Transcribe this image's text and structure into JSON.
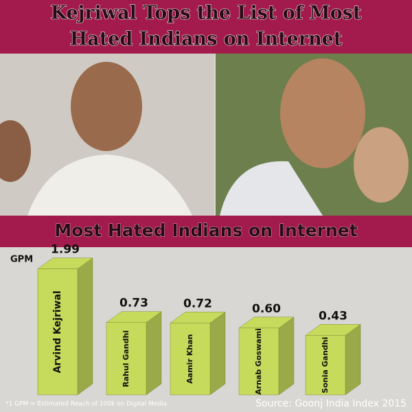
{
  "chart_data": {
    "type": "bar3d",
    "title": [
      "Kejriwal Tops the List of Most",
      "Hated Indians on Internet"
    ],
    "subtitle": "Most Hated Indians on Internet",
    "y_label": "GPM",
    "categories": [
      "Arvind Kejriwal",
      "Rahul Gandhi",
      "Aamir Khan",
      "Arnab Goswami",
      "Sonia Gandhi"
    ],
    "values": [
      1.99,
      0.73,
      0.72,
      0.6,
      0.43
    ],
    "value_labels": [
      "1.99",
      "0.73",
      "0.72",
      "0.60",
      "0.43"
    ],
    "color": "#c6da5c",
    "footnote": "*1 GPM = Estimated Reach of 100k on Digital Media",
    "source": "Source: Goonj India Index 2015"
  }
}
